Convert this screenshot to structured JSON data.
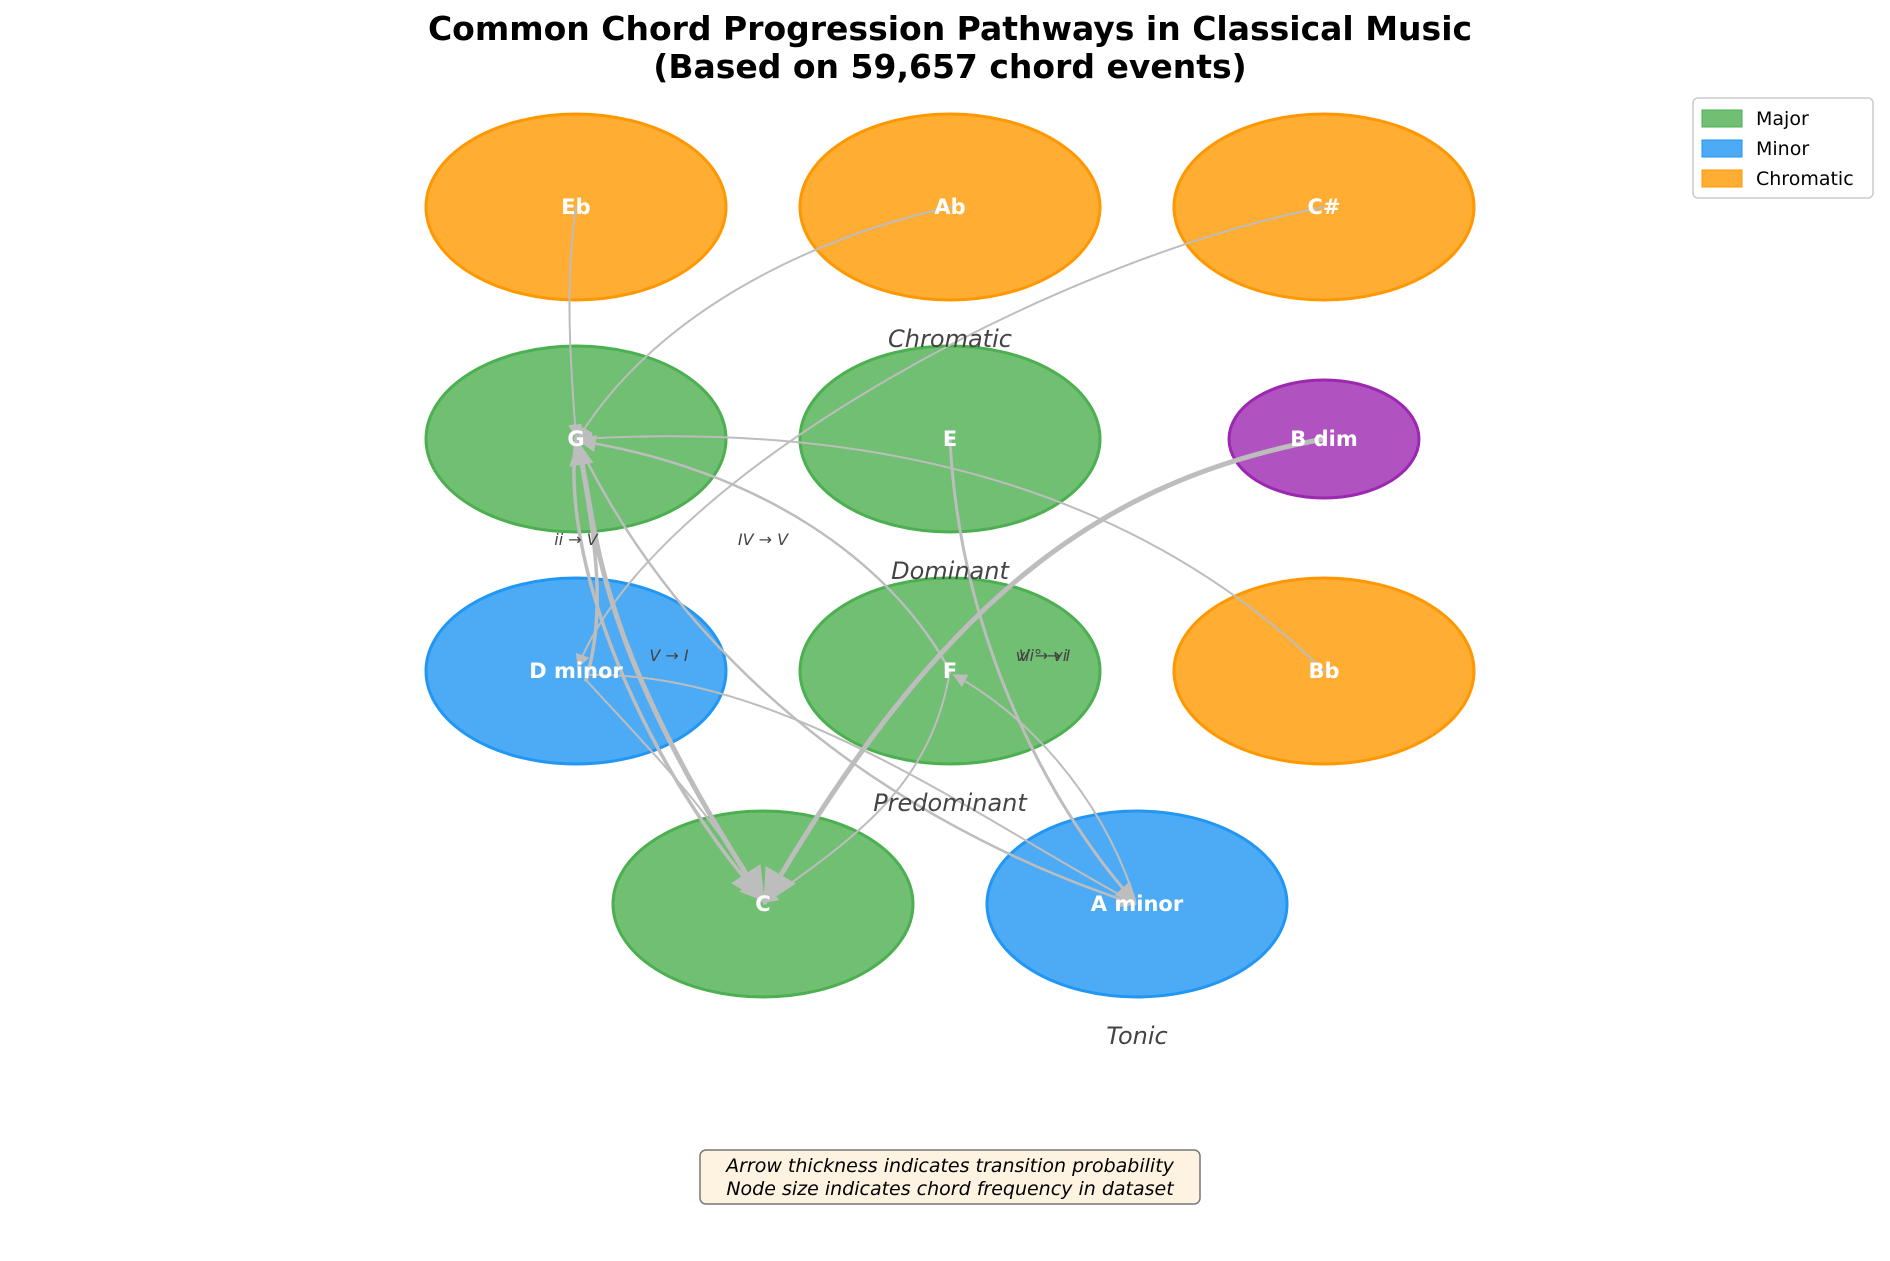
{
  "title": {
    "line1": "Common Chord Progression Pathways in Classical Music",
    "line2": "(Based on 59,657 chord events)"
  },
  "colors": {
    "Major": "#4CAF50",
    "Minor": "#2196F3",
    "Chromatic": "#FF9800",
    "Diminished": "#9C27B0",
    "edge": "#bdbdbd"
  },
  "legend": [
    {
      "label": "Major",
      "color": "#4CAF50"
    },
    {
      "label": "Minor",
      "color": "#2196F3"
    },
    {
      "label": "Chromatic",
      "color": "#FF9800"
    }
  ],
  "regions": [
    "Chromatic",
    "Dominant",
    "Predominant",
    "Tonic"
  ],
  "nodes": [
    {
      "id": "Eb",
      "label": "Eb",
      "type": "Chromatic"
    },
    {
      "id": "Ab",
      "label": "Ab",
      "type": "Chromatic"
    },
    {
      "id": "C#",
      "label": "C#",
      "type": "Chromatic"
    },
    {
      "id": "G",
      "label": "G",
      "type": "Major"
    },
    {
      "id": "E",
      "label": "E",
      "type": "Major"
    },
    {
      "id": "Bdim",
      "label": "B dim",
      "type": "Diminished"
    },
    {
      "id": "Dm",
      "label": "D minor",
      "type": "Minor"
    },
    {
      "id": "F",
      "label": "F",
      "type": "Major"
    },
    {
      "id": "Bb",
      "label": "Bb",
      "type": "Chromatic"
    },
    {
      "id": "C",
      "label": "C",
      "type": "Major"
    },
    {
      "id": "Am",
      "label": "A minor",
      "type": "Minor"
    }
  ],
  "edge_labels": [
    "ii → V",
    "IV → V",
    "V → I",
    "vii° → I",
    "V → vi"
  ],
  "note": {
    "line1": "Arrow thickness indicates transition probability",
    "line2": "Node size indicates chord frequency in dataset"
  }
}
